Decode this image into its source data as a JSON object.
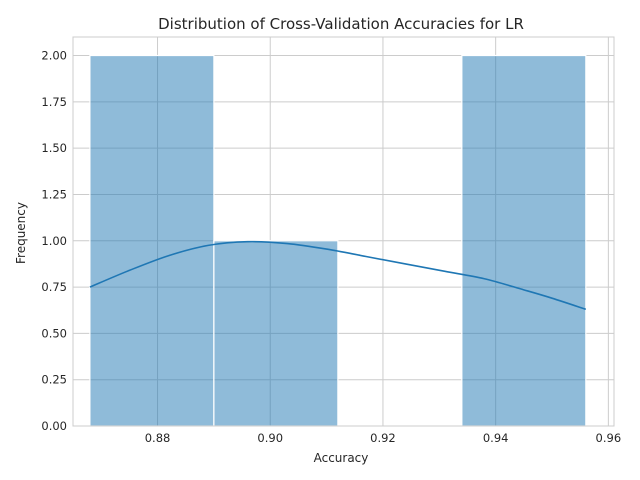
{
  "chart_data": {
    "type": "bar",
    "subtype": "histogram_with_kde",
    "title": "Distribution of Cross-Validation Accuracies for LR",
    "xlabel": "Accuracy",
    "ylabel": "Frequency",
    "xlim": [
      0.865,
      0.961
    ],
    "ylim": [
      0,
      2.1
    ],
    "x_ticks": [
      0.88,
      0.9,
      0.92,
      0.94,
      0.96
    ],
    "x_tick_labels": [
      "0.88",
      "0.90",
      "0.92",
      "0.94",
      "0.96"
    ],
    "y_ticks": [
      0,
      0.25,
      0.5,
      0.75,
      1.0,
      1.25,
      1.5,
      1.75,
      2.0
    ],
    "y_tick_labels": [
      "0.00",
      "0.25",
      "0.50",
      "0.75",
      "1.00",
      "1.25",
      "1.50",
      "1.75",
      "2.00"
    ],
    "bins": [
      {
        "x0": 0.868,
        "x1": 0.89,
        "count": 2
      },
      {
        "x0": 0.89,
        "x1": 0.912,
        "count": 1
      },
      {
        "x0": 0.912,
        "x1": 0.934,
        "count": 0
      },
      {
        "x0": 0.934,
        "x1": 0.956,
        "count": 2
      }
    ],
    "kde": {
      "x": [
        0.868,
        0.875,
        0.882,
        0.889,
        0.896,
        0.903,
        0.91,
        0.917,
        0.924,
        0.931,
        0.938,
        0.945,
        0.95,
        0.956
      ],
      "y": [
        0.75,
        0.84,
        0.92,
        0.975,
        0.995,
        0.985,
        0.955,
        0.915,
        0.875,
        0.835,
        0.795,
        0.735,
        0.69,
        0.63
      ]
    },
    "grid": true,
    "colors": {
      "bar": "#1f77b4",
      "kde": "#1f77b4",
      "grid": "#cccccc",
      "text": "#262626"
    }
  }
}
